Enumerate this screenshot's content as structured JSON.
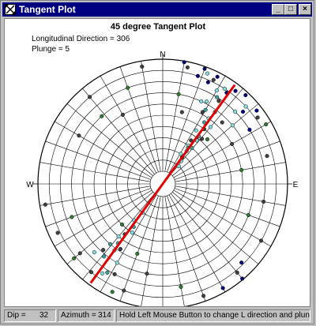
{
  "window": {
    "title": "Tangent Plot",
    "icon": "crossed-arrows-icon",
    "buttons": {
      "minimize": "_",
      "maximize": "□",
      "close": "×"
    }
  },
  "plot": {
    "title": "45 degree Tangent Plot",
    "longitudinal_direction": "Longitudinal Direction = 306",
    "plunge": "Plunge = 5",
    "compass": {
      "north": "N",
      "east": "E",
      "west": "W"
    }
  },
  "chart_data": {
    "type": "scatter",
    "title": "45 degree Tangent Plot",
    "projection": "polar stereonet",
    "rings": 10,
    "spokes_degrees": 10,
    "fit_line": {
      "color": "#e00000",
      "azimuth": 36,
      "back_azimuth": 216
    },
    "series": [
      {
        "color": "#80e0e0",
        "points": [
          [
            30,
            0.85
          ],
          [
            33,
            0.9
          ],
          [
            28,
            0.72
          ],
          [
            35,
            0.6
          ],
          [
            40,
            0.55
          ],
          [
            32,
            0.45
          ],
          [
            38,
            0.38
          ],
          [
            34,
            0.3
          ],
          [
            36,
            0.25
          ],
          [
            31,
            0.2
          ],
          [
            39,
            0.15
          ],
          [
            42,
            0.1
          ],
          [
            215,
            0.2
          ],
          [
            218,
            0.3
          ],
          [
            212,
            0.4
          ],
          [
            220,
            0.5
          ],
          [
            216,
            0.62
          ],
          [
            210,
            0.7
          ],
          [
            225,
            0.75
          ],
          [
            214,
            0.85
          ],
          [
            22,
            0.95
          ],
          [
            45,
            0.8
          ],
          [
            25,
            0.7
          ],
          [
            50,
            0.7
          ],
          [
            47,
            0.9
          ]
        ]
      },
      {
        "color": "#404040",
        "points": [
          [
            26,
            0.92
          ],
          [
            34,
            0.78
          ],
          [
            37,
            0.5
          ],
          [
            33,
            0.35
          ],
          [
            36,
            0.18
          ],
          [
            41,
            0.42
          ],
          [
            29,
            0.62
          ],
          [
            44,
            0.65
          ],
          [
            217,
            0.45
          ],
          [
            213,
            0.58
          ],
          [
            222,
            0.68
          ],
          [
            208,
            0.8
          ],
          [
            219,
            0.9
          ],
          [
            230,
            0.85
          ],
          [
            200,
            0.9
          ],
          [
            12,
            0.95
          ],
          [
            55,
            0.92
          ],
          [
            60,
            0.6
          ],
          [
            15,
            0.55
          ],
          [
            300,
            0.75
          ],
          [
            320,
            0.9
          ],
          [
            330,
            0.6
          ],
          [
            350,
            0.95
          ],
          [
            120,
            0.9
          ],
          [
            140,
            0.92
          ],
          [
            160,
            0.95
          ],
          [
            245,
            0.92
          ],
          [
            260,
            0.95
          ],
          [
            190,
            0.7
          ],
          [
            100,
            0.8
          ],
          [
            75,
            0.85
          ]
        ]
      },
      {
        "color": "#000080",
        "points": [
          [
            20,
            0.98
          ],
          [
            27,
            0.96
          ],
          [
            38,
            0.94
          ],
          [
            43,
            0.97
          ],
          [
            35,
            0.88
          ],
          [
            24,
            0.88
          ],
          [
            48,
            0.85
          ],
          [
            52,
            0.95
          ],
          [
            140,
            0.99
          ],
          [
            150,
            0.96
          ],
          [
            135,
            0.88
          ],
          [
            10,
            0.99
          ],
          [
            18,
            0.9
          ],
          [
            58,
            0.8
          ]
        ]
      },
      {
        "color": "#40a0a0",
        "points": [
          [
            32,
            0.8
          ],
          [
            36,
            0.68
          ],
          [
            34,
            0.55
          ],
          [
            37,
            0.42
          ],
          [
            35,
            0.28
          ],
          [
            214,
            0.35
          ],
          [
            217,
            0.55
          ],
          [
            219,
            0.72
          ],
          [
            212,
            0.82
          ],
          [
            221,
            0.6
          ],
          [
            30,
            0.65
          ],
          [
            39,
            0.3
          ]
        ]
      },
      {
        "color": "#2e7d32",
        "points": [
          [
            318,
            0.7
          ],
          [
            340,
            0.8
          ],
          [
            230,
            0.92
          ],
          [
            250,
            0.75
          ],
          [
            205,
            0.95
          ],
          [
            170,
            0.82
          ],
          [
            110,
            0.7
          ],
          [
            80,
            0.6
          ],
          [
            60,
            0.95
          ],
          [
            10,
            0.7
          ],
          [
            45,
            0.45
          ],
          [
            225,
            0.4
          ],
          [
            200,
            0.55
          ]
        ]
      }
    ]
  },
  "status": {
    "dip_label": "Dip =",
    "dip_value": "32",
    "azimuth_label": "Azimuth =",
    "azimuth_value": "314",
    "hint": "Hold Left Mouse Button to change L direction and plunge"
  }
}
